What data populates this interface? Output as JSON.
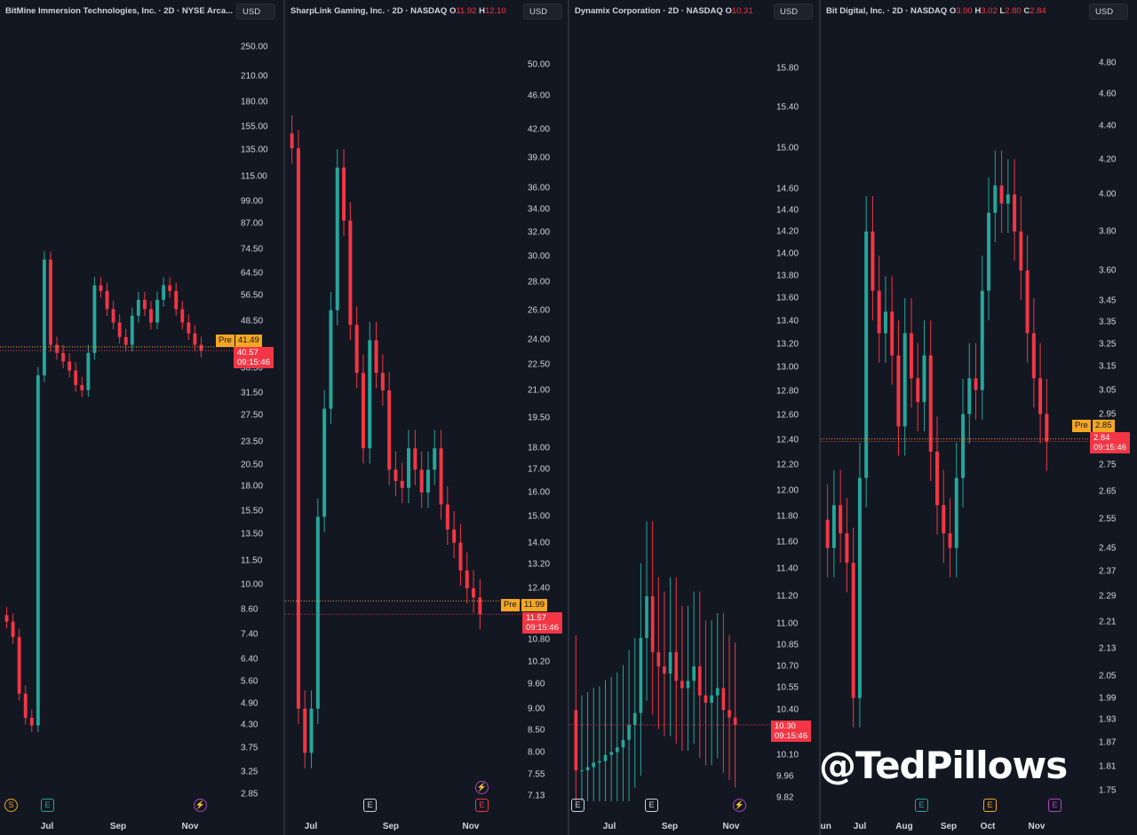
{
  "watermark": "@TedPillows",
  "chart_data": [
    {
      "type": "candlestick",
      "title": "BitMine Immersion Technologies, Inc. · 2D · NYSE Arca...",
      "currency": "USD",
      "scale": "log",
      "ylim": [
        2.7,
        290
      ],
      "yticks": [
        "250.00",
        "210.00",
        "180.00",
        "155.00",
        "135.00",
        "115.00",
        "99.00",
        "87.00",
        "74.50",
        "64.50",
        "56.50",
        "48.50",
        "36.50",
        "31.50",
        "27.50",
        "23.50",
        "20.50",
        "18.00",
        "15.50",
        "13.50",
        "11.50",
        "10.00",
        "8.60",
        "7.40",
        "6.40",
        "5.60",
        "4.90",
        "4.30",
        "3.75",
        "3.25",
        "2.85"
      ],
      "xticks": [
        "Jul",
        "Sep",
        "Nov"
      ],
      "pre_label": "Pre",
      "pre_price": "41.49",
      "last_price": "40.57",
      "countdown": "09:15:46",
      "events": [
        {
          "glyph": "S",
          "color": "#f5a623"
        },
        {
          "glyph": "E",
          "color": "#26a69a"
        },
        {
          "glyph": "⚡",
          "color": "#ab47bc"
        }
      ],
      "closes": [
        8.0,
        7.3,
        5.2,
        4.5,
        4.3,
        35,
        70,
        42,
        40,
        38,
        36,
        33,
        32,
        40,
        60,
        58,
        52,
        48,
        44,
        42,
        50,
        55,
        52,
        48,
        55,
        60,
        58,
        52,
        48,
        45,
        42,
        40.57
      ],
      "start_lows": [
        12.5,
        14.0
      ]
    },
    {
      "type": "candlestick",
      "title": "SharpLink Gaming, Inc. · 2D · NASDAQ",
      "ohlc": {
        "O": "11.92",
        "H": "12.10"
      },
      "currency": "USD",
      "scale": "log",
      "ylim": [
        7.0,
        53
      ],
      "yticks": [
        "50.00",
        "46.00",
        "42.00",
        "39.00",
        "36.00",
        "34.00",
        "32.00",
        "30.00",
        "28.00",
        "26.00",
        "24.00",
        "22.50",
        "21.00",
        "19.50",
        "18.00",
        "17.00",
        "16.00",
        "15.00",
        "14.00",
        "13.20",
        "12.40",
        "10.80",
        "10.20",
        "9.60",
        "9.00",
        "8.50",
        "8.00",
        "7.55",
        "7.13"
      ],
      "xticks": [
        "Jul",
        "Sep",
        "Nov"
      ],
      "pre_label": "Pre",
      "pre_price": "11.99",
      "last_price": "11.57",
      "countdown": "09:15:46",
      "events": [
        {
          "glyph": "E",
          "color": "#d1d4dc"
        },
        {
          "glyph": "⚡",
          "color": "#ab47bc"
        },
        {
          "glyph": "E",
          "color": "#f23645"
        }
      ],
      "closes": [
        40,
        9,
        8,
        9,
        15,
        20,
        26,
        38,
        33,
        25,
        22,
        18,
        24,
        22,
        21,
        17,
        16.5,
        16.2,
        18,
        17,
        16,
        17,
        18,
        15.5,
        14.5,
        14,
        13,
        12.4,
        12.1,
        11.57
      ]
    },
    {
      "type": "candlestick",
      "title": "Dynamix Corporation · 2D · NASDAQ",
      "ohlc": {
        "O": "10.31"
      },
      "currency": "USD",
      "scale": "log",
      "ylim": [
        9.8,
        16.0
      ],
      "yticks": [
        "15.80",
        "15.40",
        "15.00",
        "14.60",
        "14.40",
        "14.20",
        "14.00",
        "13.80",
        "13.60",
        "13.40",
        "13.20",
        "13.00",
        "12.80",
        "12.60",
        "12.40",
        "12.20",
        "12.00",
        "11.80",
        "11.60",
        "11.40",
        "11.20",
        "11.00",
        "10.85",
        "10.70",
        "10.55",
        "10.40",
        "10.10",
        "9.96",
        "9.82"
      ],
      "xticks": [
        "Jul",
        "Sep",
        "Nov"
      ],
      "last_price": "10.30",
      "countdown": "09:15:46",
      "events": [
        {
          "glyph": "E",
          "color": "#d1d4dc"
        },
        {
          "glyph": "E",
          "color": "#d1d4dc"
        },
        {
          "glyph": "⚡",
          "color": "#ab47bc"
        }
      ],
      "closes": [
        10.0,
        10.0,
        10.02,
        10.05,
        10.06,
        10.1,
        10.12,
        10.15,
        10.2,
        10.3,
        10.38,
        10.9,
        11.2,
        10.8,
        10.7,
        10.65,
        10.8,
        10.6,
        10.55,
        10.6,
        10.7,
        10.5,
        10.45,
        10.5,
        10.55,
        10.4,
        10.35,
        10.3
      ]
    },
    {
      "type": "candlestick",
      "title": "Bit Digital, Inc. · 2D · NASDAQ",
      "ohlc": {
        "O": "3.00",
        "H": "3.02",
        "L": "2.80",
        "C": "2.84"
      },
      "currency": "USD",
      "scale": "log",
      "ylim": [
        1.72,
        4.95
      ],
      "yticks": [
        "4.80",
        "4.60",
        "4.40",
        "4.20",
        "4.00",
        "3.80",
        "3.60",
        "3.45",
        "3.35",
        "3.25",
        "3.15",
        "3.05",
        "2.95",
        "2.75",
        "2.65",
        "2.55",
        "2.45",
        "2.37",
        "2.29",
        "2.21",
        "2.13",
        "2.05",
        "1.99",
        "1.93",
        "1.87",
        "1.81",
        "1.75"
      ],
      "xticks": [
        "Jun",
        "Jul",
        "Aug",
        "Sep",
        "Oct",
        "Nov"
      ],
      "pre_label": "Pre",
      "pre_price": "2.85",
      "last_price": "2.84",
      "countdown": "09:15:46",
      "events": [
        {
          "glyph": "E",
          "color": "#26a69a"
        },
        {
          "glyph": "E",
          "color": "#f5a623"
        },
        {
          "glyph": "E",
          "color": "#ab47bc"
        }
      ],
      "closes": [
        2.45,
        2.6,
        2.5,
        2.4,
        1.99,
        2.7,
        3.8,
        3.5,
        3.3,
        3.4,
        3.2,
        2.9,
        3.3,
        3.1,
        3.0,
        3.2,
        2.8,
        2.6,
        2.5,
        2.45,
        2.7,
        2.95,
        3.1,
        3.05,
        3.5,
        3.9,
        4.05,
        3.95,
        4.0,
        3.8,
        3.6,
        3.3,
        3.1,
        2.95,
        2.84
      ]
    }
  ]
}
